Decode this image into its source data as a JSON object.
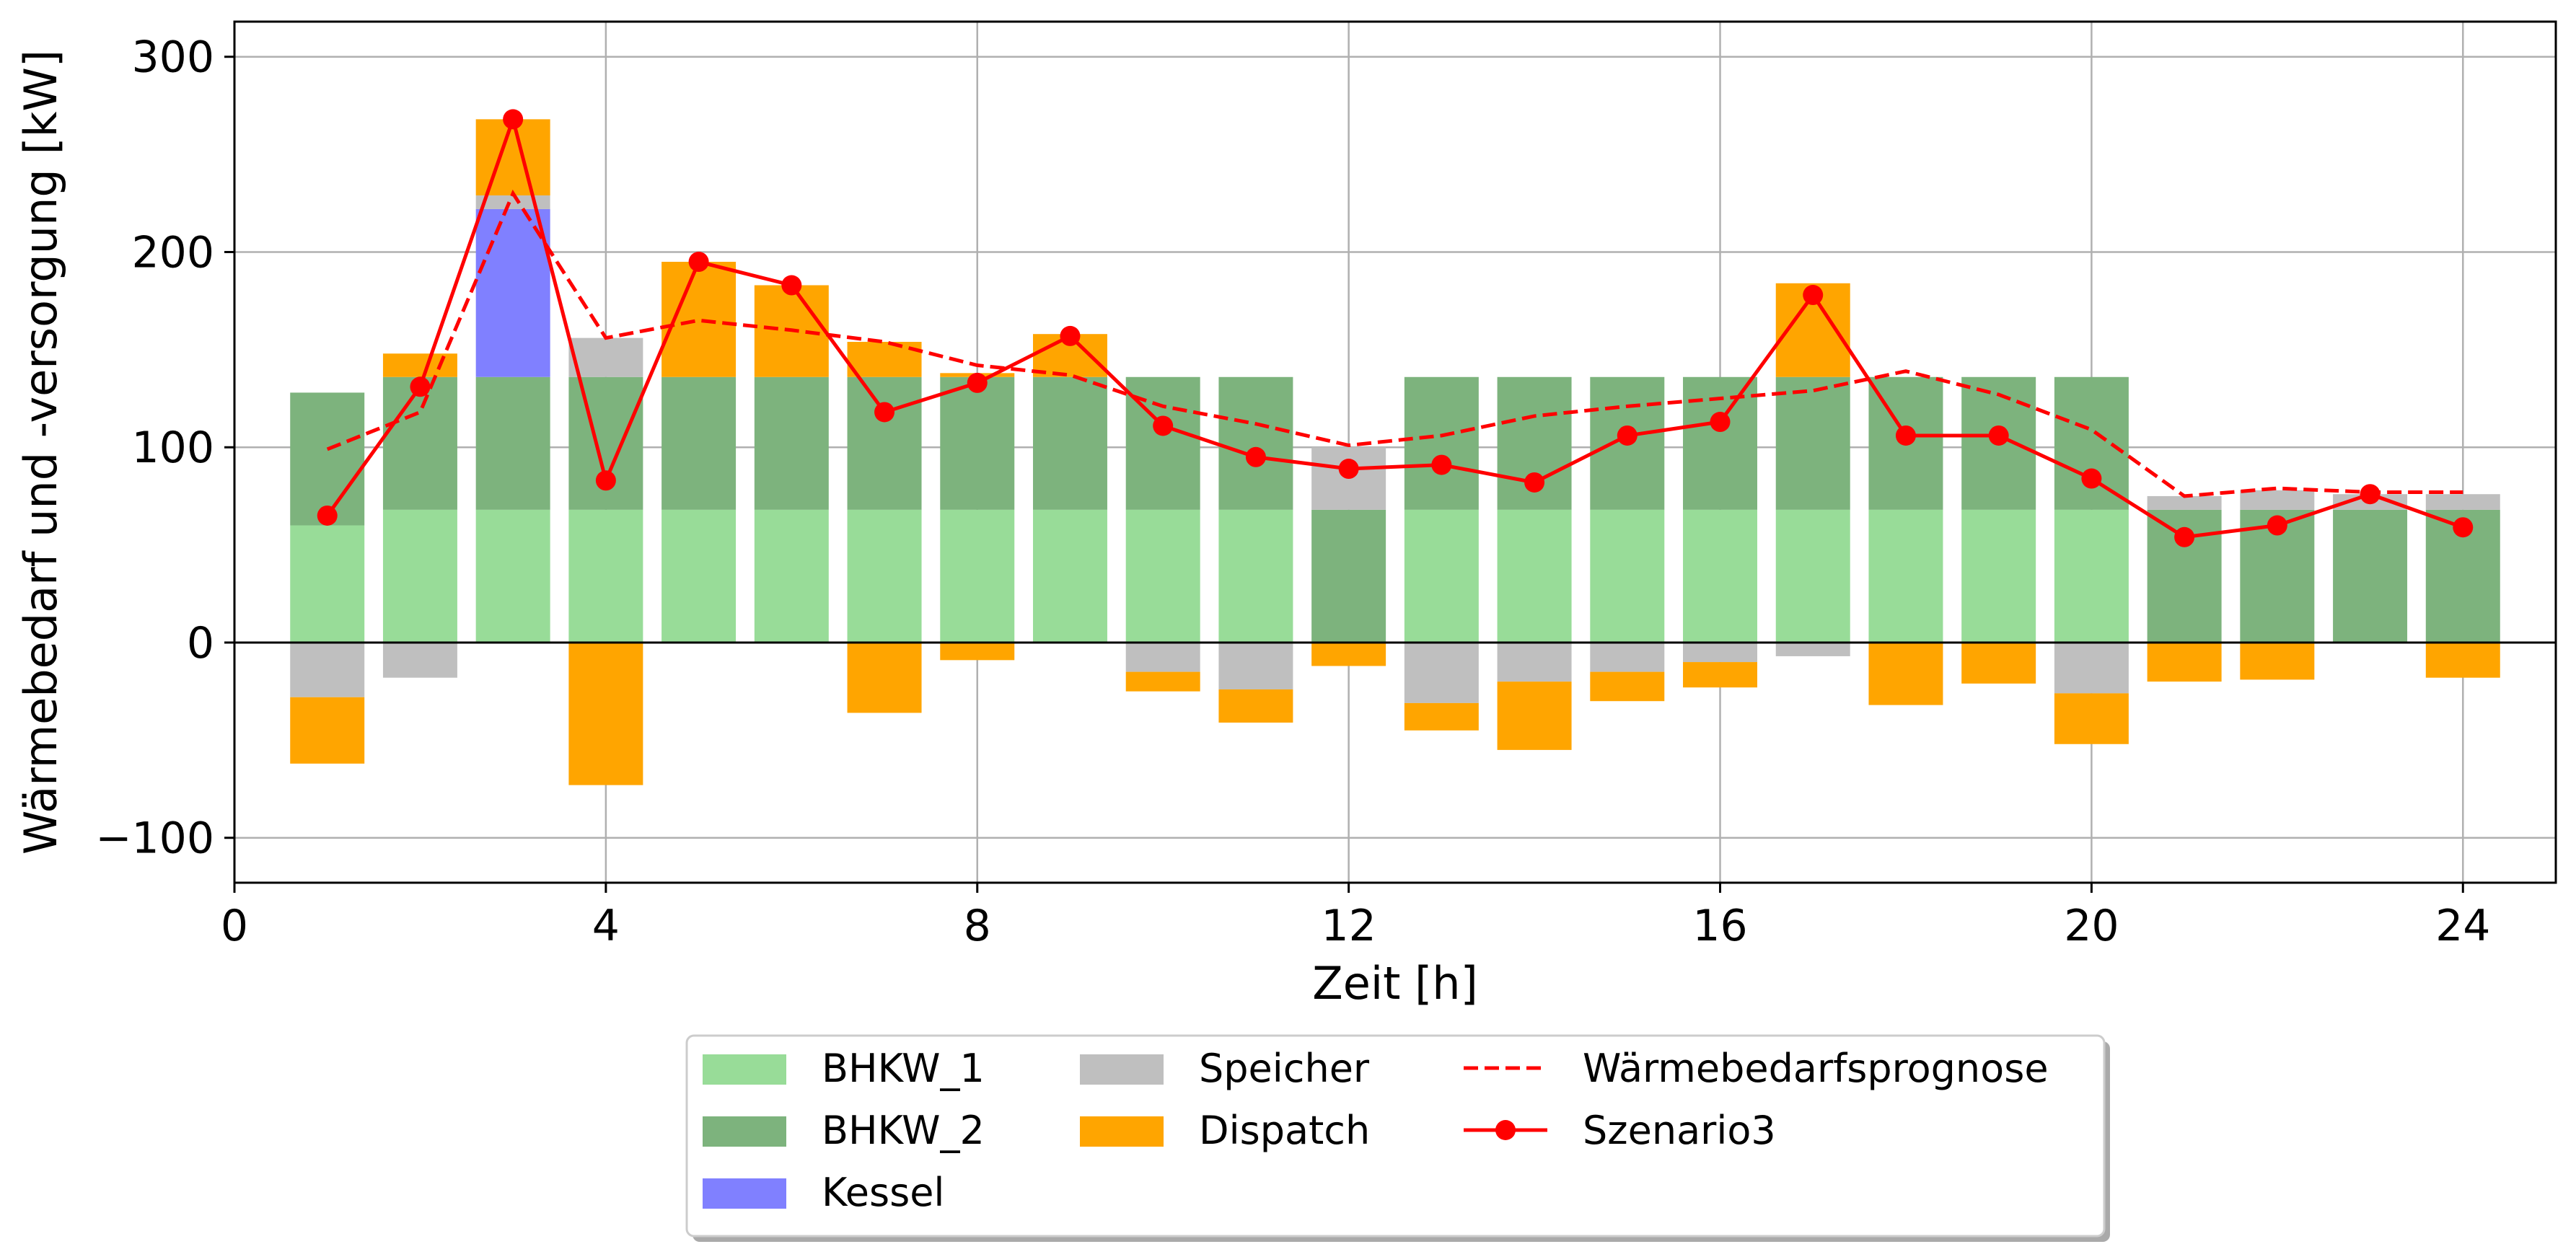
{
  "chart_data": {
    "type": "bar",
    "xlabel": "Zeit [h]",
    "ylabel": "Wärmebedarf und -versorgung [kW]",
    "xlim": [
      0,
      25
    ],
    "ylim": [
      -123,
      318
    ],
    "xticks": [
      0,
      4,
      8,
      12,
      16,
      20,
      24
    ],
    "yticks": [
      -100,
      0,
      100,
      200,
      300
    ],
    "grid": true,
    "legend_position": "bottom-center (outside)",
    "hours": [
      1,
      2,
      3,
      4,
      5,
      6,
      7,
      8,
      9,
      10,
      11,
      12,
      13,
      14,
      15,
      16,
      17,
      18,
      19,
      20,
      21,
      22,
      23,
      24
    ],
    "series": [
      {
        "name": "BHKW_1",
        "color": "#98dc98",
        "values": [
          60,
          68,
          68,
          68,
          68,
          68,
          68,
          68,
          68,
          68,
          68,
          0,
          68,
          68,
          68,
          68,
          68,
          68,
          68,
          68,
          0,
          0,
          0,
          0
        ]
      },
      {
        "name": "BHKW_2",
        "color": "#7db37d",
        "values": [
          68,
          68,
          68,
          68,
          68,
          68,
          68,
          68,
          68,
          68,
          68,
          68,
          68,
          68,
          68,
          68,
          68,
          68,
          68,
          68,
          68,
          68,
          68,
          68
        ]
      },
      {
        "name": "Kessel",
        "color": "#8080ff",
        "values": [
          0,
          0,
          86,
          0,
          0,
          0,
          0,
          0,
          0,
          0,
          0,
          0,
          0,
          0,
          0,
          0,
          0,
          0,
          0,
          0,
          0,
          0,
          0,
          0
        ]
      },
      {
        "name": "Speicher",
        "color": "#bfbfbf",
        "pos": [
          0,
          0,
          7,
          20,
          0,
          0,
          0,
          0,
          0,
          0,
          0,
          32,
          0,
          0,
          0,
          0,
          0,
          0,
          0,
          0,
          7,
          10,
          8,
          8
        ],
        "neg": [
          -28,
          -18,
          0,
          0,
          0,
          0,
          0,
          0,
          0,
          -15,
          -24,
          0,
          -31,
          -20,
          -15,
          -10,
          -7,
          0,
          0,
          -26,
          0,
          0,
          0,
          0
        ]
      },
      {
        "name": "Dispatch",
        "color": "#ffa500",
        "pos": [
          0,
          12,
          39,
          0,
          59,
          47,
          18,
          2,
          22,
          0,
          0,
          0,
          0,
          0,
          0,
          0,
          48,
          0,
          0,
          0,
          0,
          0,
          0,
          0
        ],
        "neg": [
          -34,
          0,
          0,
          -73,
          0,
          0,
          -36,
          -9,
          0,
          -10,
          -17,
          -12,
          -14,
          -35,
          -15,
          -13,
          0,
          -32,
          -21,
          -26,
          -20,
          -19,
          0,
          -18
        ]
      }
    ],
    "lines": [
      {
        "name": "Wärmebedarfsprognose",
        "color": "#ff0000",
        "style": "dashed",
        "values": [
          99,
          118,
          230,
          156,
          165,
          160,
          154,
          142,
          137,
          121,
          112,
          101,
          106,
          116,
          121,
          125,
          129,
          139,
          127,
          109,
          75,
          79,
          77,
          77
        ]
      },
      {
        "name": "Szenario3",
        "color": "#ff0000",
        "style": "solid-marker",
        "values": [
          65,
          131,
          268,
          83,
          195,
          183,
          118,
          133,
          157,
          111,
          95,
          89,
          91,
          82,
          106,
          113,
          178,
          106,
          106,
          84,
          54,
          60,
          76,
          59
        ]
      }
    ]
  },
  "legend": {
    "entries": [
      "BHKW_1",
      "BHKW_2",
      "Kessel",
      "Speicher",
      "Dispatch",
      "Wärmebedarfsprognose",
      "Szenario3"
    ]
  }
}
